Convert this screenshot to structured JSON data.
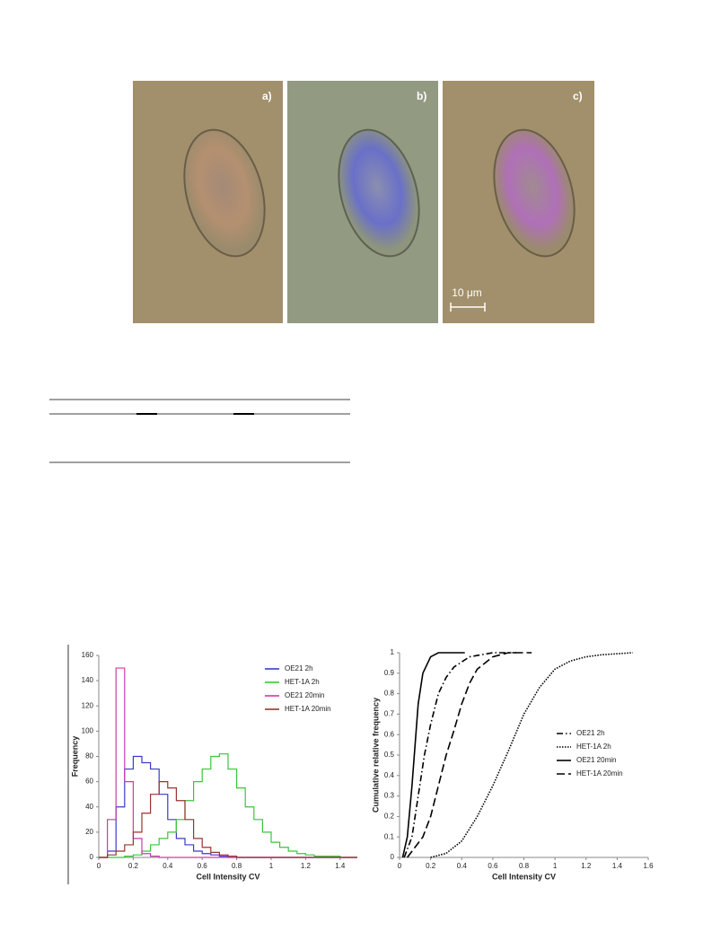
{
  "figure1": {
    "panels": [
      "a)",
      "b)",
      "c)"
    ],
    "scale_bar": "10 μm"
  },
  "chart_data": [
    {
      "type": "line",
      "step": true,
      "xlabel": "Cell Intensity CV",
      "ylabel": "Frequency",
      "xlim": [
        0,
        1.5
      ],
      "xticks": [
        0,
        0.2,
        0.4,
        0.6,
        0.8,
        1,
        1.2,
        1.4
      ],
      "ylim": [
        0,
        160
      ],
      "yticks": [
        0,
        20,
        40,
        60,
        80,
        100,
        120,
        140,
        160
      ],
      "legend": "upper right",
      "x": [
        0,
        0.05,
        0.1,
        0.15,
        0.2,
        0.25,
        0.3,
        0.35,
        0.4,
        0.45,
        0.5,
        0.55,
        0.6,
        0.65,
        0.7,
        0.75,
        0.8,
        0.85,
        0.9,
        0.95,
        1,
        1.05,
        1.1,
        1.15,
        1.2,
        1.25,
        1.3,
        1.35,
        1.4,
        1.45,
        1.5
      ],
      "series": [
        {
          "name": "OE21 2h",
          "color": "#3a3acc",
          "values": [
            0,
            5,
            40,
            70,
            80,
            75,
            70,
            50,
            30,
            15,
            10,
            5,
            3,
            2,
            1,
            0,
            0,
            0,
            0,
            0,
            0,
            0,
            0,
            0,
            0,
            0,
            0,
            0,
            0,
            0,
            0
          ]
        },
        {
          "name": "HET-1A 2h",
          "color": "#3cc43c",
          "values": [
            0,
            0,
            0,
            1,
            2,
            5,
            10,
            15,
            20,
            30,
            45,
            60,
            70,
            80,
            82,
            70,
            55,
            40,
            30,
            20,
            12,
            8,
            5,
            3,
            2,
            1,
            1,
            1,
            0,
            0,
            0
          ]
        },
        {
          "name": "OE21 20min",
          "color": "#cc3aaa",
          "values": [
            0,
            30,
            150,
            60,
            15,
            3,
            1,
            0,
            0,
            0,
            0,
            0,
            0,
            0,
            0,
            0,
            0,
            0,
            0,
            0,
            0,
            0,
            0,
            0,
            0,
            0,
            0,
            0,
            0,
            0,
            0
          ]
        },
        {
          "name": "HET-1A 20min",
          "color": "#993333",
          "values": [
            0,
            2,
            5,
            10,
            20,
            35,
            50,
            60,
            55,
            45,
            30,
            15,
            8,
            4,
            2,
            1,
            0,
            0,
            0,
            0,
            0,
            0,
            0,
            0,
            0,
            0,
            0,
            0,
            0,
            0,
            0
          ]
        }
      ]
    },
    {
      "type": "line",
      "xlabel": "Cell Intensity CV",
      "ylabel": "Cumulative relative frequency",
      "xlim": [
        0,
        1.6
      ],
      "xticks": [
        0,
        0.2,
        0.4,
        0.6,
        0.8,
        1,
        1.2,
        1.4,
        1.6
      ],
      "ylim": [
        0,
        1
      ],
      "yticks": [
        0,
        0.1,
        0.2,
        0.3,
        0.4,
        0.5,
        0.6,
        0.7,
        0.8,
        0.9,
        1
      ],
      "legend": "center right",
      "series": [
        {
          "name": "OE21 2h",
          "color": "#000000",
          "line_style": "dash-dot",
          "x": [
            0.03,
            0.08,
            0.12,
            0.16,
            0.2,
            0.25,
            0.3,
            0.35,
            0.45,
            0.6,
            0.75
          ],
          "values": [
            0,
            0.1,
            0.3,
            0.5,
            0.65,
            0.8,
            0.88,
            0.93,
            0.98,
            1,
            1
          ]
        },
        {
          "name": "HET-1A 2h",
          "color": "#000000",
          "line_style": "dotted",
          "x": [
            0.2,
            0.3,
            0.4,
            0.5,
            0.6,
            0.7,
            0.8,
            0.9,
            1,
            1.1,
            1.2,
            1.3,
            1.5
          ],
          "values": [
            0,
            0.02,
            0.08,
            0.2,
            0.35,
            0.52,
            0.7,
            0.83,
            0.92,
            0.96,
            0.98,
            0.99,
            1
          ]
        },
        {
          "name": "OE21 20min",
          "color": "#000000",
          "line_style": "solid",
          "x": [
            0.02,
            0.05,
            0.08,
            0.1,
            0.12,
            0.15,
            0.2,
            0.25,
            0.3,
            0.42
          ],
          "values": [
            0,
            0.1,
            0.35,
            0.55,
            0.75,
            0.9,
            0.98,
            1,
            1,
            1
          ]
        },
        {
          "name": "HET-1A 20min",
          "color": "#000000",
          "line_style": "dashed",
          "x": [
            0.05,
            0.15,
            0.2,
            0.25,
            0.3,
            0.35,
            0.4,
            0.45,
            0.5,
            0.6,
            0.7,
            0.85
          ],
          "values": [
            0,
            0.1,
            0.2,
            0.35,
            0.5,
            0.62,
            0.75,
            0.85,
            0.92,
            0.98,
            1,
            1
          ]
        }
      ]
    }
  ]
}
